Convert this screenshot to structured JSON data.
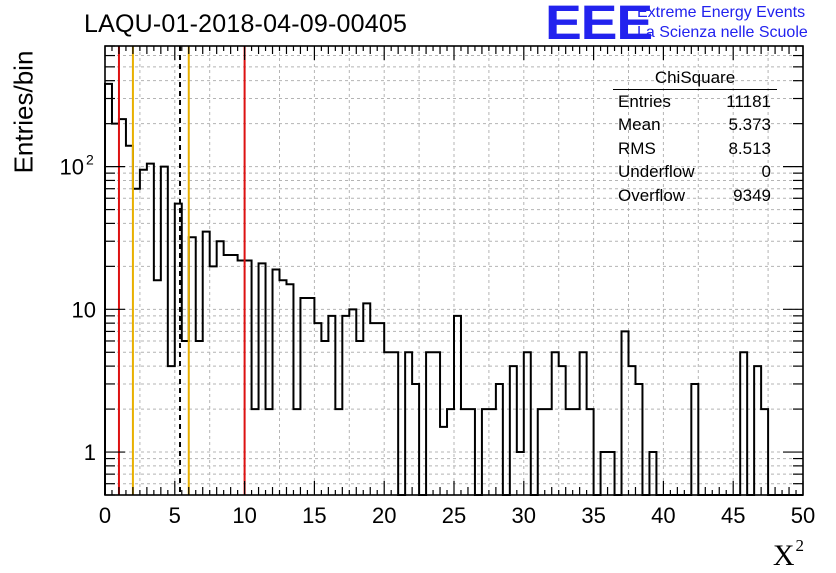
{
  "title": "LAQU-01-2018-04-09-00405",
  "brand": {
    "logo": "EEE",
    "line1": "Extreme Energy Events",
    "line2": "La Scienza nelle Scuole"
  },
  "stats": {
    "header": "ChiSquare",
    "rows": [
      {
        "label": "Entries",
        "value": "11181"
      },
      {
        "label": "Mean",
        "value": "5.373"
      },
      {
        "label": "RMS",
        "value": "8.513"
      },
      {
        "label": "Underflow",
        "value": "0"
      },
      {
        "label": "Overflow",
        "value": "9349"
      }
    ]
  },
  "colors": {
    "red": "#dd1111",
    "orange": "#e8b000",
    "logo_blue": "#2222ee"
  },
  "chart_data": {
    "type": "bar",
    "histogram": "step",
    "xlabel": "X",
    "xlabel_superscript": "2",
    "ylabel": "Entries/bin",
    "xlim": [
      0,
      50
    ],
    "ylim": [
      0.5,
      700
    ],
    "yscale": "log",
    "grid": true,
    "bin_width": 0.5,
    "x_ticks": [
      "0",
      "5",
      "10",
      "15",
      "20",
      "25",
      "30",
      "35",
      "40",
      "45",
      "50"
    ],
    "y_ticks": [
      {
        "value": 1,
        "label": "1"
      },
      {
        "value": 10,
        "label": "10"
      },
      {
        "value": 100,
        "label": "10",
        "exponent": "2"
      }
    ],
    "values": [
      380,
      200,
      215,
      140,
      70,
      95,
      105,
      16,
      100,
      4,
      55,
      6,
      32,
      6,
      35,
      20,
      30,
      24,
      24,
      22,
      22,
      2,
      21,
      2,
      19,
      16,
      15,
      2,
      12,
      12,
      8,
      6,
      9,
      2,
      9,
      10,
      6,
      11,
      8,
      8,
      5,
      5,
      0,
      5,
      3,
      0,
      5,
      5,
      1.5,
      2,
      9,
      2,
      2,
      0,
      2,
      2,
      3,
      0,
      4,
      1,
      5,
      0,
      2,
      2,
      5,
      4,
      2,
      2,
      5,
      2,
      0,
      1,
      1,
      0,
      7,
      4,
      3,
      0,
      1,
      0,
      0,
      0,
      0,
      0,
      3,
      0,
      0,
      0,
      0,
      0,
      0,
      5,
      0,
      4,
      2,
      0,
      0,
      0,
      0,
      0
    ],
    "reference_lines": [
      {
        "x": 1,
        "color": "#dd1111",
        "style": "solid"
      },
      {
        "x": 2,
        "color": "#e8b000",
        "style": "solid"
      },
      {
        "x": 5.373,
        "color": "#000000",
        "style": "dashed"
      },
      {
        "x": 6,
        "color": "#e8b000",
        "style": "solid"
      },
      {
        "x": 10,
        "color": "#dd1111",
        "style": "solid"
      }
    ]
  }
}
